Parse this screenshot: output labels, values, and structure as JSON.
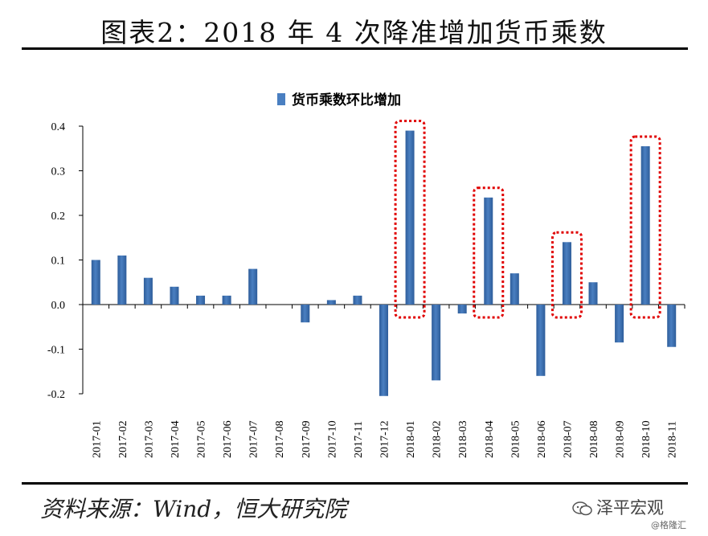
{
  "header": {
    "title": "图表2：2018 年 4 次降准增加货币乘数"
  },
  "footer": {
    "source": "资料来源：Wind，恒大研究院",
    "watermark_account": "泽平宏观",
    "watermark_site": "@格隆汇"
  },
  "colors": {
    "bar": "#4a7fc1",
    "bar_dark": "#2e5d9a",
    "highlight_box": "#e00000"
  },
  "chart_data": {
    "type": "bar",
    "categories": [
      "2017-01",
      "2017-02",
      "2017-03",
      "2017-04",
      "2017-05",
      "2017-06",
      "2017-07",
      "2017-08",
      "2017-09",
      "2017-10",
      "2017-11",
      "2017-12",
      "2018-01",
      "2018-02",
      "2018-03",
      "2018-04",
      "2018-05",
      "2018-06",
      "2018-07",
      "2018-08",
      "2018-09",
      "2018-10",
      "2018-11"
    ],
    "series": [
      {
        "name": "货币乘数环比增加",
        "values": [
          0.1,
          0.11,
          0.06,
          0.04,
          0.02,
          0.02,
          0.08,
          0.0,
          -0.04,
          0.01,
          0.02,
          -0.205,
          0.39,
          -0.17,
          -0.02,
          0.24,
          0.07,
          -0.16,
          0.14,
          0.05,
          -0.085,
          0.355,
          -0.095
        ]
      }
    ],
    "ylim": [
      -0.2,
      0.4
    ],
    "yticks": [
      "0.4",
      "0.3",
      "0.2",
      "0.1",
      "0.0",
      "-0.1",
      "-0.2"
    ],
    "ytick_values": [
      0.4,
      0.3,
      0.2,
      0.1,
      0.0,
      -0.1,
      -0.2
    ],
    "legend_position": "top-center",
    "highlighted_categories": [
      "2018-01",
      "2018-04",
      "2018-07",
      "2018-10"
    ],
    "grid": false
  }
}
